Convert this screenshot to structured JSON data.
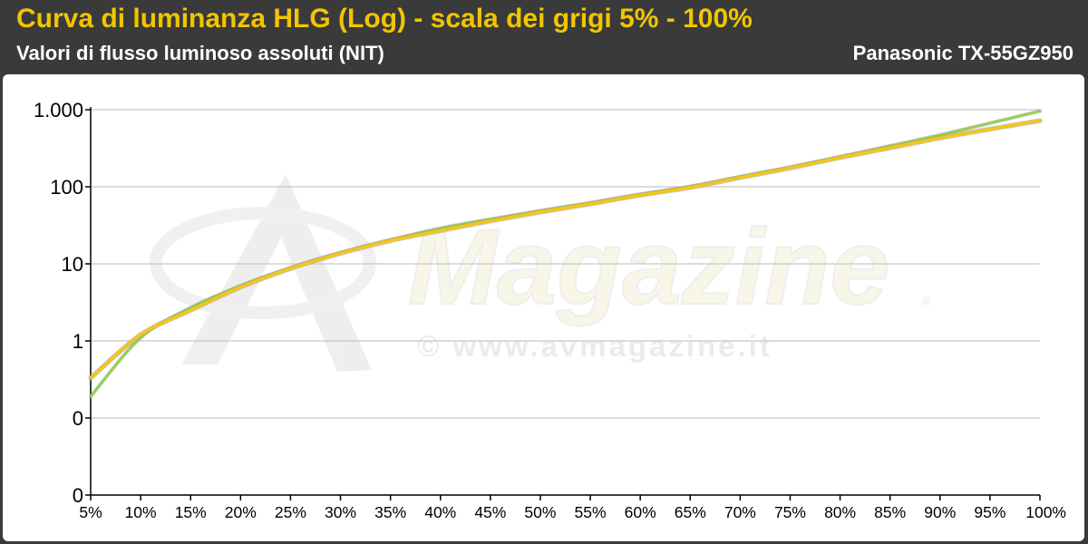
{
  "header": {
    "title": "Curva di luminanza HLG (Log) - scala dei grigi 5% - 100%",
    "subtitle": "Valori di flusso luminoso assoluti (NIT)",
    "device": "Panasonic TX-55GZ950"
  },
  "watermark": {
    "brand": "Magazine",
    "url": "© www.avmagazine.it"
  },
  "colors": {
    "background": "#3a3a3a",
    "title": "#f2c500",
    "reference_line": "#8fd44a",
    "measured_line": "#f5c518",
    "grid": "#c8c8c8"
  },
  "chart_data": {
    "type": "line",
    "x_scale": "category",
    "y_scale": "log",
    "categories": [
      "5%",
      "10%",
      "15%",
      "20%",
      "25%",
      "30%",
      "35%",
      "40%",
      "45%",
      "50%",
      "55%",
      "60%",
      "65%",
      "70%",
      "75%",
      "80%",
      "85%",
      "90%",
      "95%",
      "100%"
    ],
    "y_ticks": [
      {
        "value": 0.01,
        "label": "0"
      },
      {
        "value": 0.1,
        "label": "0"
      },
      {
        "value": 1,
        "label": "1"
      },
      {
        "value": 10,
        "label": "10"
      },
      {
        "value": 100,
        "label": "100"
      },
      {
        "value": 1000,
        "label": "1.000"
      }
    ],
    "ylim": [
      0.01,
      1000
    ],
    "grid": true,
    "legend": "none",
    "series": [
      {
        "color": "#8fd44a",
        "values": [
          0.19,
          1.1,
          2.7,
          5.2,
          8.9,
          14,
          20.5,
          29,
          38,
          49,
          62,
          80,
          101,
          135,
          180,
          245,
          340,
          470,
          670,
          960
        ]
      },
      {
        "color": "#f5c518",
        "values": [
          0.33,
          1.2,
          2.5,
          5.0,
          8.7,
          13.7,
          20,
          27,
          36,
          47,
          60,
          78,
          98,
          132,
          175,
          240,
          320,
          430,
          560,
          720
        ]
      }
    ]
  }
}
